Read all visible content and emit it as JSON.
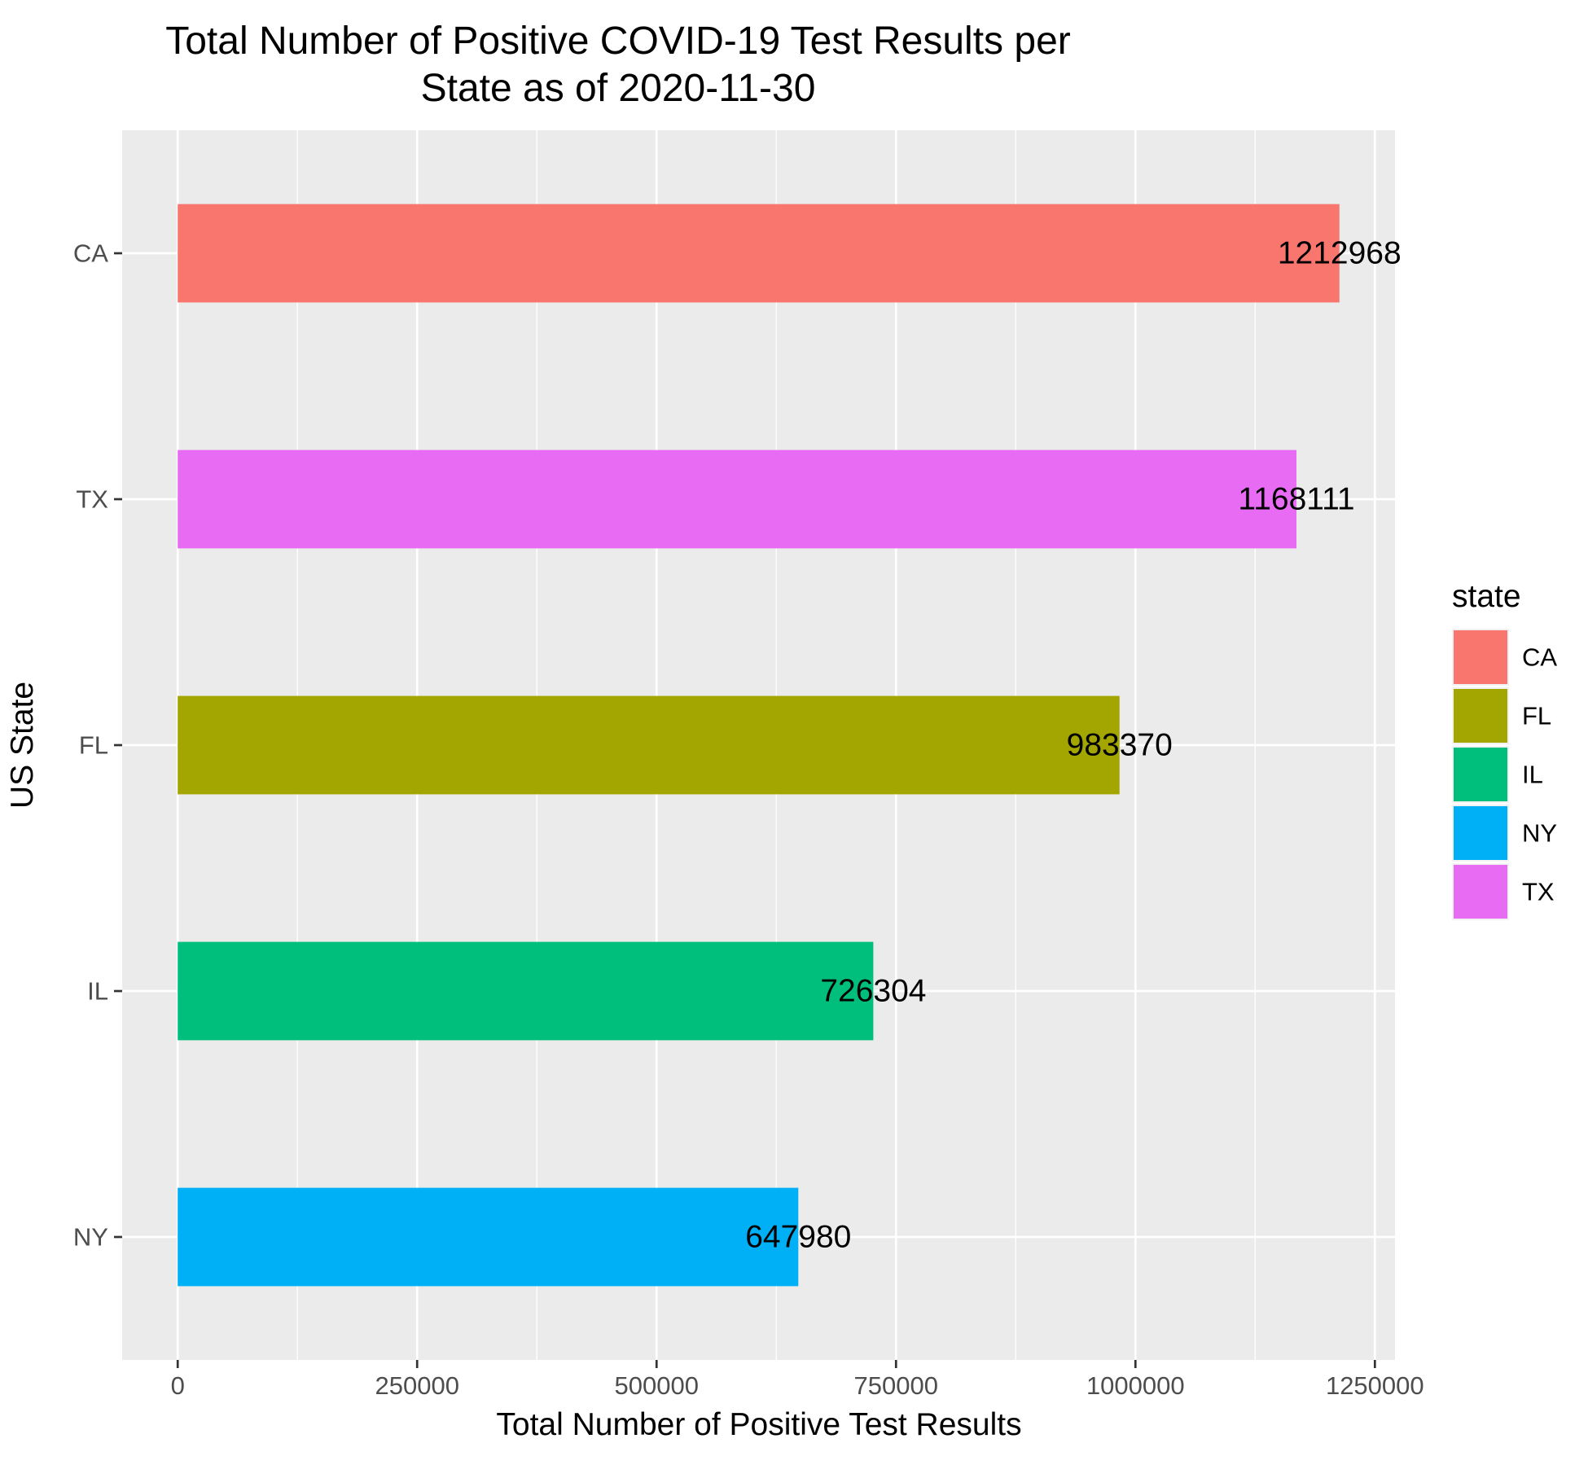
{
  "chart_data": {
    "type": "bar",
    "orientation": "horizontal",
    "title": [
      "Total Number of Positive COVID-19 Test Results per",
      "State as of  2020-11-30"
    ],
    "xlabel": "Total Number of Positive Test Results",
    "ylabel": "US State",
    "categories": [
      "CA",
      "TX",
      "FL",
      "IL",
      "NY"
    ],
    "values": [
      1212968,
      1168111,
      983370,
      726304,
      647980
    ],
    "value_labels": [
      "1212968",
      "1168111",
      "983370",
      "726304",
      "647980"
    ],
    "colors": {
      "CA": "#F8766D",
      "FL": "#A3A500",
      "IL": "#00BF7D",
      "NY": "#00B0F6",
      "TX": "#E76BF3"
    },
    "xlim": [
      -58000,
      1271000
    ],
    "xticks": [
      0,
      250000,
      500000,
      750000,
      1000000,
      1250000
    ],
    "xtick_labels": [
      "0",
      "250000",
      "500000",
      "750000",
      "1000000",
      "1250000"
    ],
    "grid": true,
    "panel_background": "#EBEBEB",
    "legend": {
      "title": "state",
      "position": "right",
      "entries": [
        "CA",
        "FL",
        "IL",
        "NY",
        "TX"
      ]
    }
  }
}
